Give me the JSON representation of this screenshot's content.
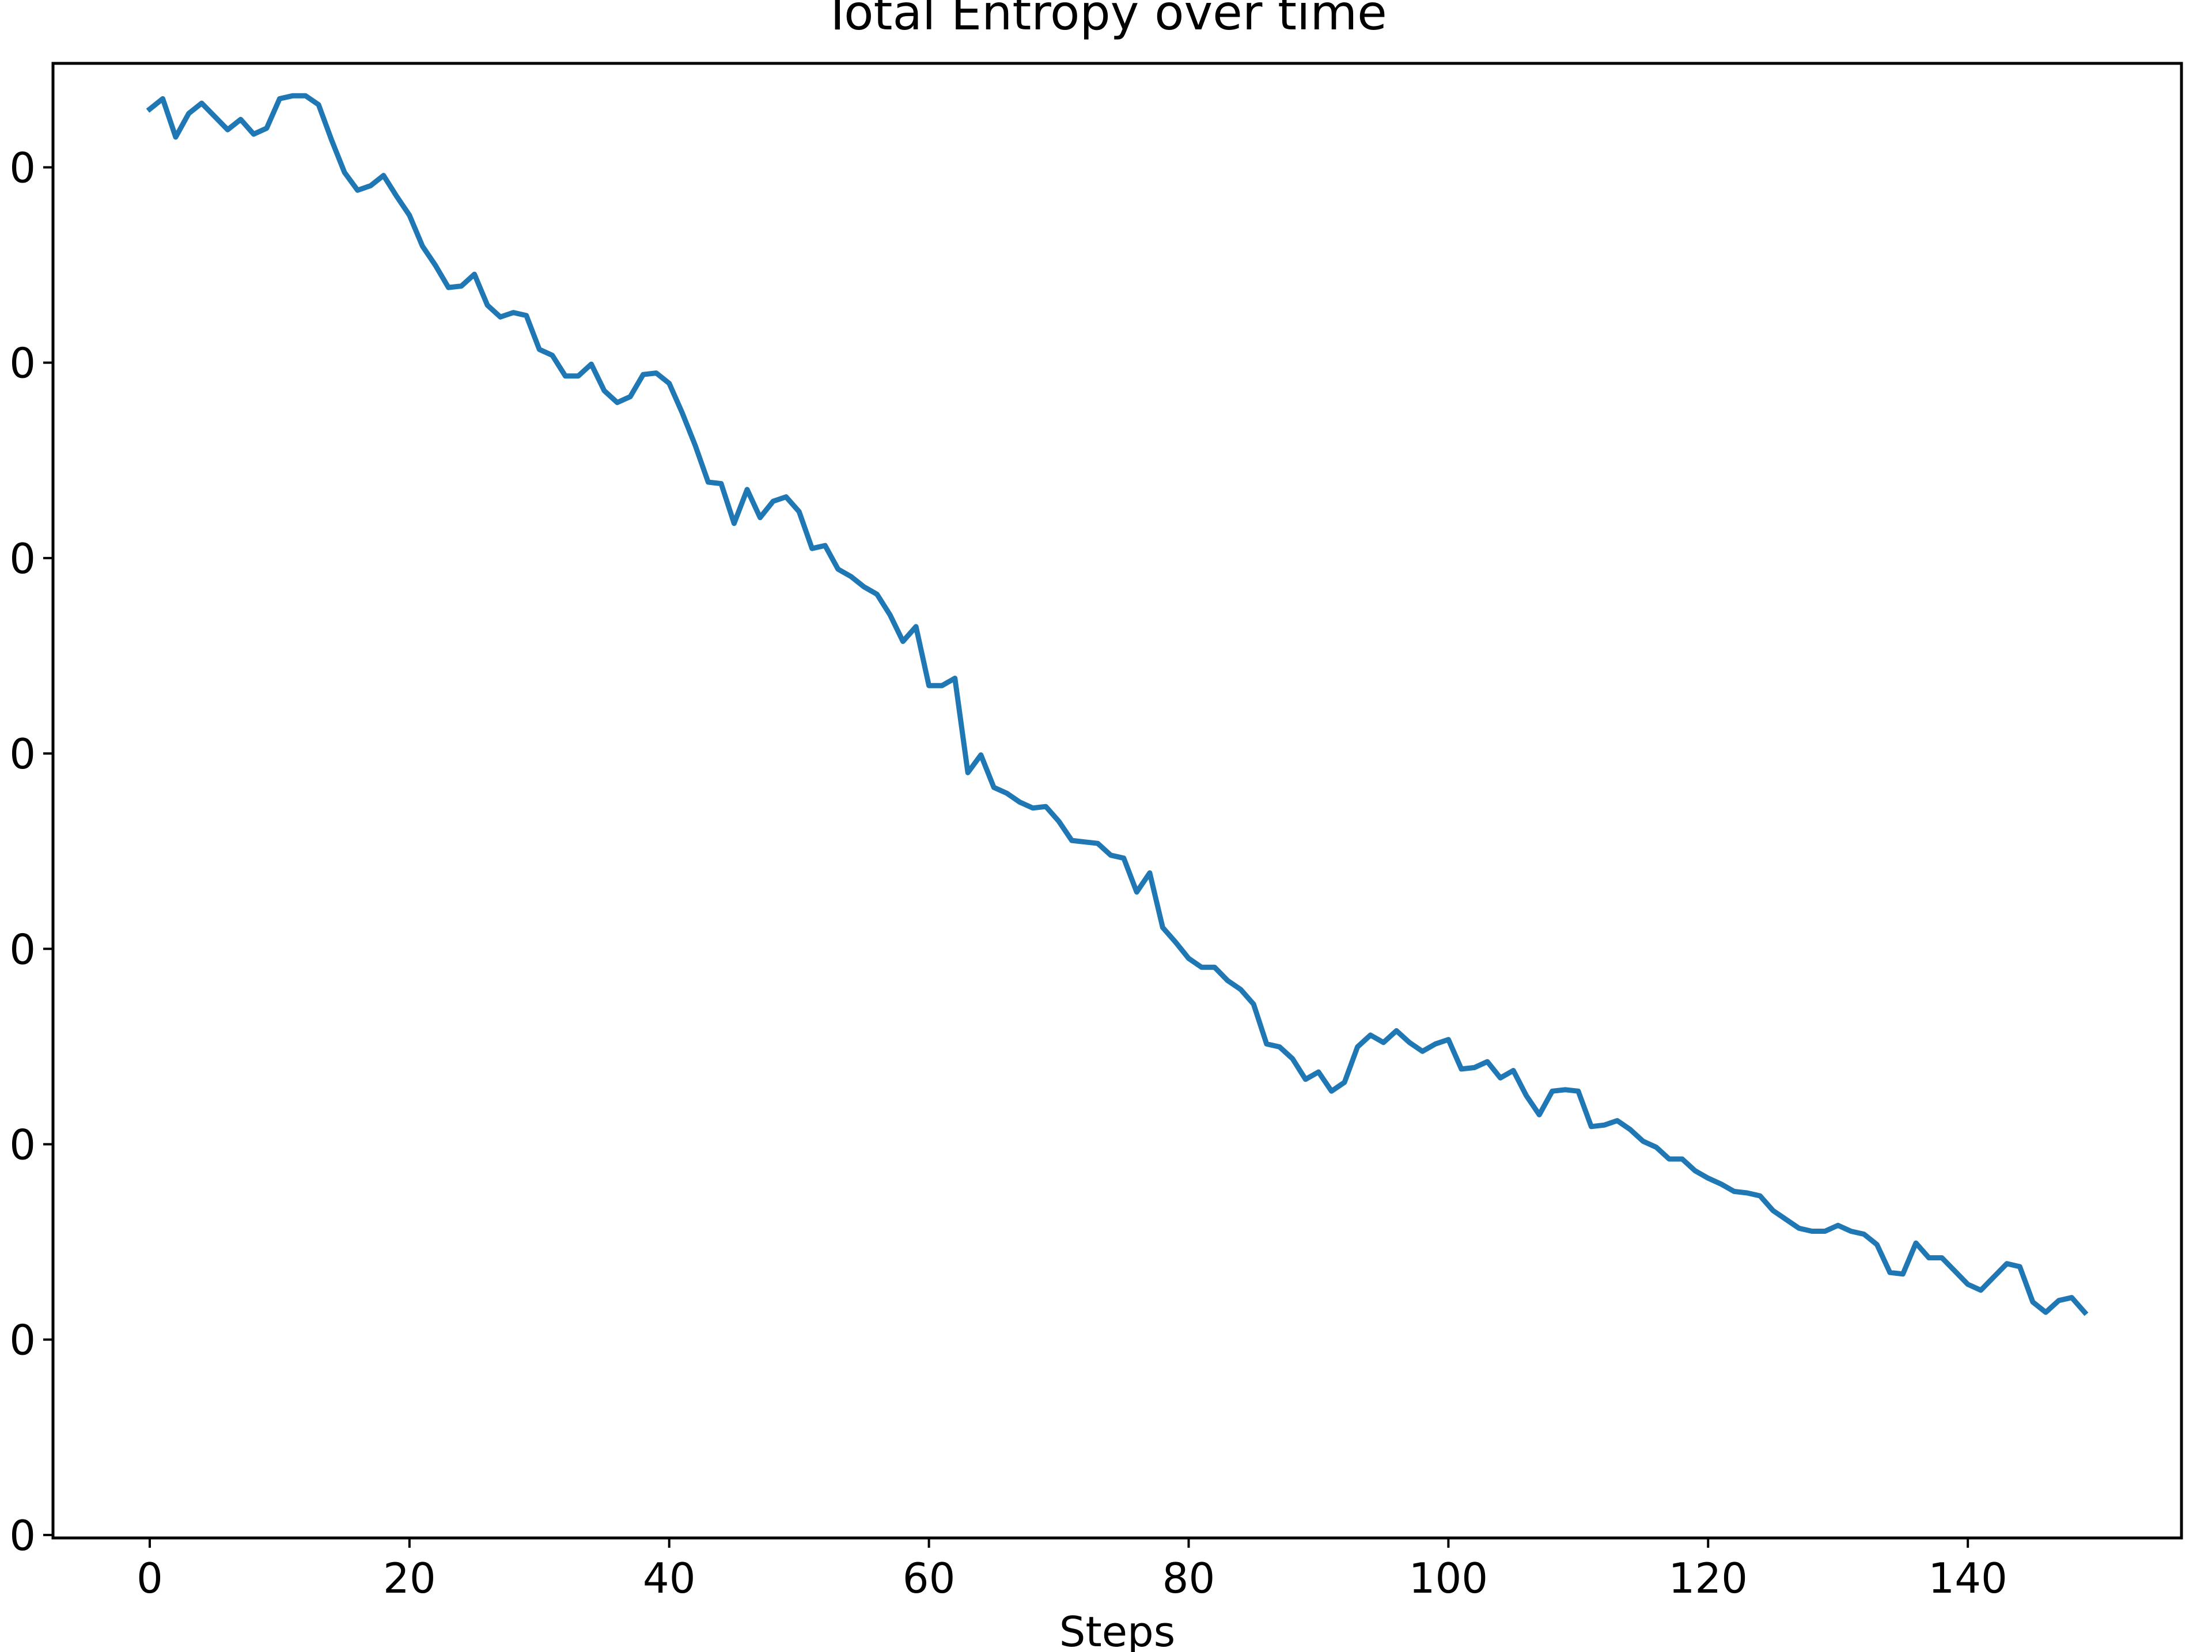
{
  "chart_data": {
    "type": "line",
    "title": "Total Entropy over time",
    "xlabel": "Steps",
    "ylabel": "",
    "xlim": [
      -7.45,
      156.45
    ],
    "ylim": [
      0,
      1
    ],
    "x_ticks": [
      "0",
      "20",
      "40",
      "60",
      "80",
      "100",
      "120",
      "140"
    ],
    "y_ticks": [
      "0",
      "0",
      "0",
      "0",
      "0",
      "0",
      "0",
      "0"
    ],
    "grid": false,
    "legend": "none",
    "line_color": "#1f77b4",
    "series": [
      {
        "x": [
          0,
          1,
          2,
          3,
          4,
          5,
          6,
          7,
          8,
          9,
          10,
          11,
          12,
          13,
          14,
          15,
          16,
          17,
          18,
          19,
          20,
          21,
          22,
          23,
          24,
          25,
          26,
          27,
          28,
          29,
          30,
          31,
          32,
          33,
          34,
          35,
          36,
          37,
          38,
          39,
          40,
          41,
          42,
          43,
          44,
          45,
          46,
          47,
          48,
          49,
          50,
          51,
          52,
          53,
          54,
          55,
          56,
          57,
          58,
          59,
          60,
          61,
          62,
          63,
          64,
          65,
          66,
          67,
          68,
          69,
          70,
          71,
          72,
          73,
          74,
          75,
          76,
          77,
          78,
          79,
          80,
          81,
          82,
          83,
          84,
          85,
          86,
          87,
          88,
          89,
          90,
          91,
          92,
          93,
          94,
          95,
          96,
          97,
          98,
          99,
          100,
          101,
          102,
          103,
          104,
          105,
          106,
          107,
          108,
          109,
          110,
          111,
          112,
          113,
          114,
          115,
          116,
          117,
          118,
          119,
          120,
          121,
          122,
          123,
          124,
          125,
          126,
          127,
          128,
          129,
          130,
          131,
          132,
          133,
          134,
          135,
          136,
          137,
          138,
          139,
          140,
          141,
          142,
          143,
          144,
          145,
          146,
          147,
          148,
          149
        ],
        "y": [
          0.969,
          0.976,
          0.95,
          0.966,
          0.973,
          0.964,
          0.955,
          0.962,
          0.952,
          0.956,
          0.976,
          0.978,
          0.978,
          0.972,
          0.948,
          0.926,
          0.914,
          0.917,
          0.924,
          0.91,
          0.897,
          0.876,
          0.863,
          0.848,
          0.849,
          0.857,
          0.836,
          0.828,
          0.831,
          0.829,
          0.806,
          0.802,
          0.788,
          0.788,
          0.796,
          0.778,
          0.77,
          0.774,
          0.789,
          0.79,
          0.783,
          0.763,
          0.741,
          0.716,
          0.715,
          0.688,
          0.711,
          0.692,
          0.703,
          0.706,
          0.696,
          0.671,
          0.673,
          0.657,
          0.652,
          0.645,
          0.64,
          0.626,
          0.608,
          0.618,
          0.578,
          0.578,
          0.583,
          0.519,
          0.531,
          0.509,
          0.505,
          0.499,
          0.495,
          0.496,
          0.486,
          0.473,
          0.472,
          0.471,
          0.463,
          0.461,
          0.438,
          0.451,
          0.414,
          0.404,
          0.393,
          0.387,
          0.387,
          0.378,
          0.372,
          0.362,
          0.335,
          0.333,
          0.325,
          0.311,
          0.316,
          0.303,
          0.309,
          0.333,
          0.341,
          0.336,
          0.344,
          0.336,
          0.33,
          0.335,
          0.338,
          0.318,
          0.319,
          0.323,
          0.312,
          0.317,
          0.3,
          0.287,
          0.303,
          0.304,
          0.303,
          0.279,
          0.28,
          0.283,
          0.277,
          0.269,
          0.265,
          0.257,
          0.257,
          0.249,
          0.244,
          0.24,
          0.235,
          0.234,
          0.232,
          0.222,
          0.216,
          0.21,
          0.208,
          0.208,
          0.212,
          0.208,
          0.206,
          0.199,
          0.18,
          0.179,
          0.2,
          0.19,
          0.19,
          0.181,
          0.172,
          0.168,
          0.177,
          0.186,
          0.184,
          0.16,
          0.153,
          0.161,
          0.163,
          0.153
        ]
      }
    ]
  }
}
